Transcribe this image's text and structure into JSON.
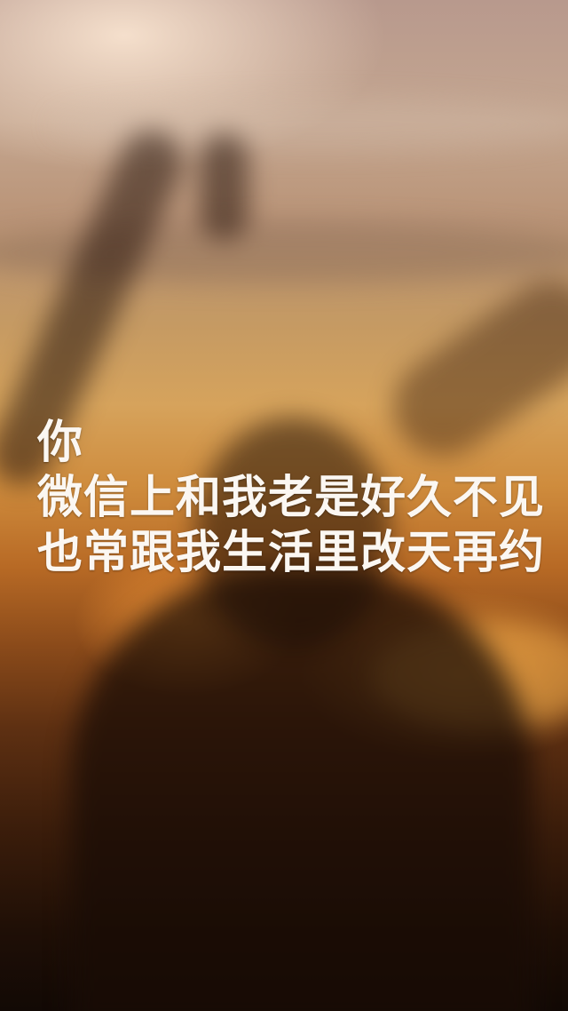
{
  "caption": {
    "lines": [
      "你",
      "微信上和我老是好久不见",
      "也常跟我生活里改天再约"
    ]
  }
}
